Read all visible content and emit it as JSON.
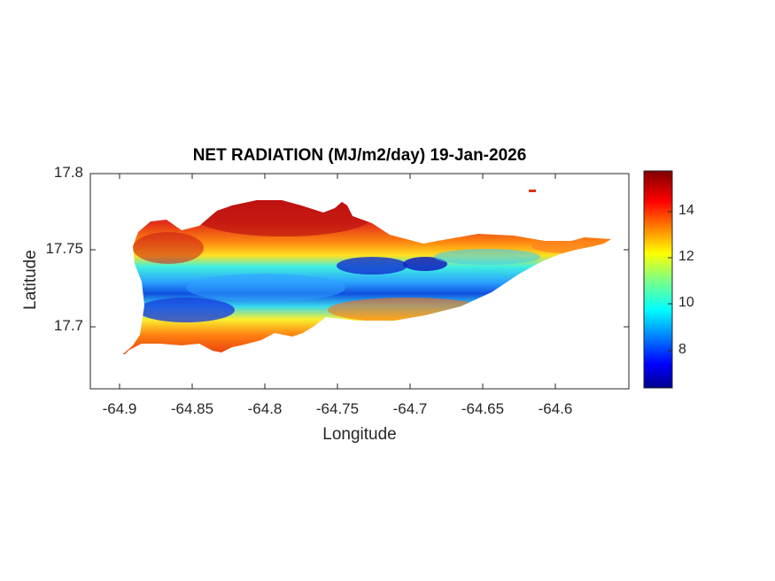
{
  "title": "NET RADIATION (MJ/m2/day) 19-Jan-2026",
  "xlabel": "Longitude",
  "ylabel": "Latitude",
  "x_ticks": [
    "-64.9",
    "-64.85",
    "-64.8",
    "-64.75",
    "-64.7",
    "-64.65",
    "-64.6"
  ],
  "y_ticks": [
    "17.8",
    "17.75",
    "17.7"
  ],
  "colorbar": {
    "ticks": [
      "14",
      "12",
      "10",
      "8"
    ],
    "range": [
      6.4,
      15.7
    ],
    "colormap": "jet"
  },
  "chart_data": {
    "type": "heatmap",
    "title": "NET RADIATION (MJ/m2/day) 19-Jan-2026",
    "xlabel": "Longitude",
    "ylabel": "Latitude",
    "xlim": [
      -64.92,
      -64.565
    ],
    "ylim": [
      17.655,
      17.8
    ],
    "x_ticks": [
      -64.9,
      -64.85,
      -64.8,
      -64.75,
      -64.7,
      -64.65,
      -64.6
    ],
    "y_ticks": [
      17.7,
      17.75,
      17.8
    ],
    "colormap": "jet",
    "clim": [
      6.4,
      15.7
    ],
    "colorbar_ticks": [
      8,
      10,
      12,
      14
    ],
    "grid": false,
    "description_values": {
      "north_coast_max": 15.5,
      "central_valley_min": 7,
      "east_end": 13.5
    }
  }
}
